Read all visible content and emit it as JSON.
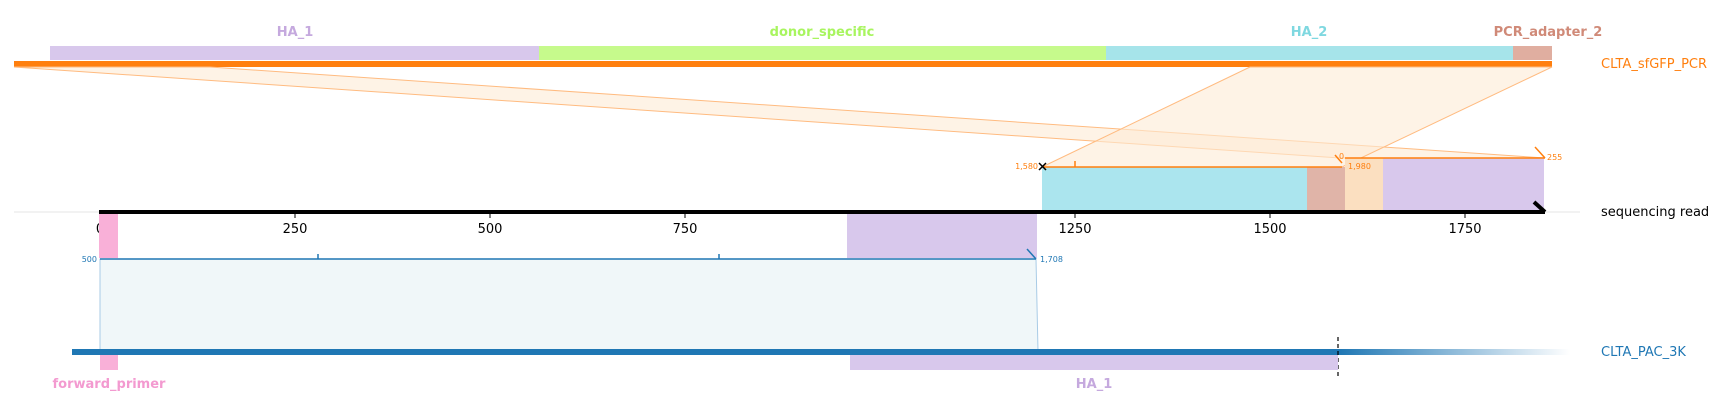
{
  "colors": {
    "orange": "#ff7f0e",
    "blue": "#1f77b4",
    "ha1": "#c5a9de",
    "donor": "#a8f55f",
    "ha2": "#7fd8e0",
    "pcr_adapter": "#d08a78",
    "forward_primer": "#f39ad0",
    "pale_orange": "#f8d3a8"
  },
  "top_reference": {
    "name": "CLTA_sfGFP_PCR",
    "features": [
      {
        "label": "HA_1",
        "color": "#c5a9de"
      },
      {
        "label": "donor_specific",
        "color": "#a8f55f"
      },
      {
        "label": "HA_2",
        "color": "#7fd8e0"
      },
      {
        "label": "PCR_adapter_2",
        "color": "#d08a78"
      }
    ]
  },
  "read": {
    "name": "sequencing read",
    "axis_ticks": [
      "0",
      "250",
      "500",
      "750",
      "1000",
      "1250",
      "1500",
      "1750"
    ]
  },
  "top_alignment": {
    "start_label": "1,580",
    "mid_label": "1,980",
    "end_label": "255",
    "small_label": "0"
  },
  "bottom_alignment": {
    "start_label": "500",
    "end_label": "1,708"
  },
  "bottom_reference": {
    "name": "CLTA_PAC_3K",
    "features": [
      {
        "label": "forward_primer",
        "color": "#f39ad0"
      },
      {
        "label": "HA_1",
        "color": "#c5a9de"
      }
    ]
  }
}
